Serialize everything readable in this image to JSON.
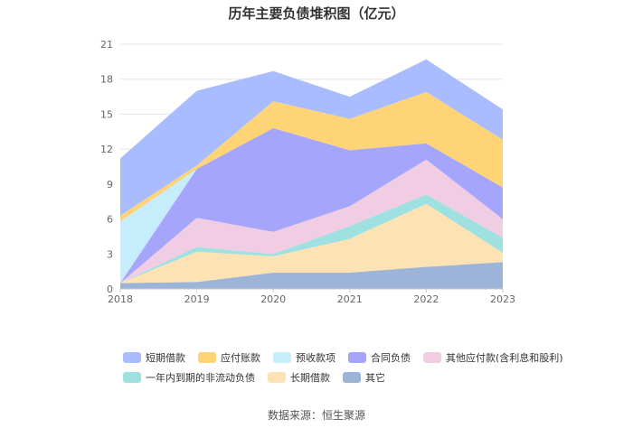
{
  "chart_data": {
    "type": "area",
    "stacked": true,
    "title": "历年主要负债堆积图（亿元）",
    "xlabel": "",
    "ylabel": "",
    "x": [
      "2018",
      "2019",
      "2020",
      "2021",
      "2022",
      "2023"
    ],
    "yticks": [
      "0",
      "3",
      "6",
      "9",
      "12",
      "15",
      "18",
      "21"
    ],
    "ylim": [
      0,
      21
    ],
    "grid": true,
    "legend_position": "bottom",
    "series": [
      {
        "name": "其它",
        "color": "#9db4d9",
        "values": [
          0.5,
          0.6,
          1.4,
          1.4,
          1.9,
          2.3
        ]
      },
      {
        "name": "长期借款",
        "color": "#fde3b4",
        "values": [
          0.0,
          2.6,
          1.4,
          2.9,
          5.4,
          0.8
        ]
      },
      {
        "name": "一年内到期的非流动负债",
        "color": "#9fe0e0",
        "values": [
          0.0,
          0.4,
          0.2,
          1.1,
          0.8,
          1.3
        ]
      },
      {
        "name": "其他应付款(含利息和股利)",
        "color": "#f1cde3",
        "values": [
          0.0,
          2.5,
          1.9,
          1.7,
          3.0,
          1.6
        ]
      },
      {
        "name": "合同负债",
        "color": "#a5a5fb",
        "values": [
          0.0,
          4.2,
          8.9,
          4.8,
          1.4,
          2.7
        ]
      },
      {
        "name": "预收款项",
        "color": "#c7ecfc",
        "values": [
          5.3,
          0.0,
          0.0,
          0.0,
          0.0,
          0.0
        ]
      },
      {
        "name": "应付账款",
        "color": "#fed477",
        "values": [
          0.5,
          0.3,
          2.3,
          2.7,
          4.4,
          4.1
        ]
      },
      {
        "name": "短期借款",
        "color": "#a9bcff",
        "values": [
          4.9,
          6.4,
          2.6,
          1.9,
          2.8,
          2.6
        ]
      }
    ],
    "legend": [
      [
        "短期借款",
        "应付账款",
        "预收款项",
        "合同负债",
        "其他应付款(含利息和股利)"
      ],
      [
        "一年内到期的非流动负债",
        "长期借款",
        "其它"
      ]
    ]
  },
  "source_text": "数据来源：恒生聚源"
}
